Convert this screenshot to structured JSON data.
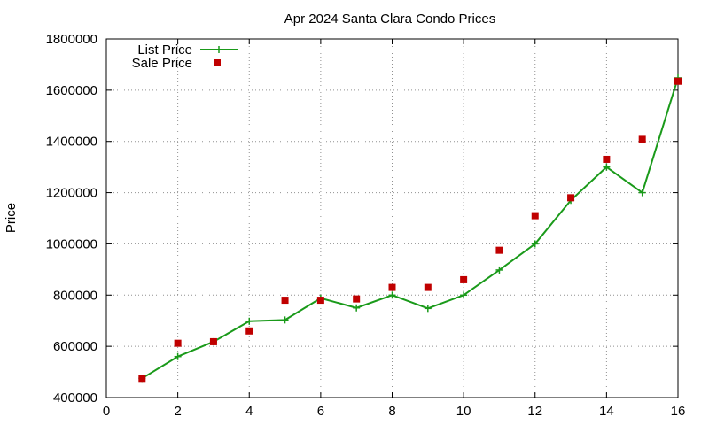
{
  "chart_data": {
    "type": "line",
    "title": "Apr 2024 Santa Clara Condo Prices",
    "xlabel": "",
    "ylabel": "Price",
    "xlim": [
      0,
      16
    ],
    "ylim": [
      400000,
      1800000
    ],
    "xticks": [
      0,
      2,
      4,
      6,
      8,
      10,
      12,
      14,
      16
    ],
    "yticks": [
      400000,
      600000,
      800000,
      1000000,
      1200000,
      1400000,
      1600000,
      1800000
    ],
    "grid": true,
    "legend_position": "top-left",
    "series": [
      {
        "name": "List Price",
        "style": "line-with-plus-markers",
        "color": "#1a9a1a",
        "points": [
          [
            1,
            475000
          ],
          [
            2,
            560000
          ],
          [
            3,
            618000
          ],
          [
            4,
            698000
          ],
          [
            5,
            703000
          ],
          [
            6,
            788000
          ],
          [
            7,
            750000
          ],
          [
            8,
            800000
          ],
          [
            9,
            748000
          ],
          [
            10,
            800000
          ],
          [
            11,
            898000
          ],
          [
            12,
            1000000
          ],
          [
            13,
            1170000
          ],
          [
            14,
            1300000
          ],
          [
            15,
            1200000
          ],
          [
            16,
            1648000
          ]
        ]
      },
      {
        "name": "Sale Price",
        "style": "square-markers",
        "color": "#c00000",
        "points": [
          [
            1,
            475000
          ],
          [
            2,
            612000
          ],
          [
            3,
            618000
          ],
          [
            4,
            660000
          ],
          [
            5,
            780000
          ],
          [
            6,
            780000
          ],
          [
            7,
            785000
          ],
          [
            8,
            830000
          ],
          [
            9,
            830000
          ],
          [
            10,
            860000
          ],
          [
            11,
            975000
          ],
          [
            12,
            1110000
          ],
          [
            13,
            1180000
          ],
          [
            14,
            1330000
          ],
          [
            15,
            1408000
          ],
          [
            16,
            1635000
          ]
        ]
      }
    ]
  }
}
